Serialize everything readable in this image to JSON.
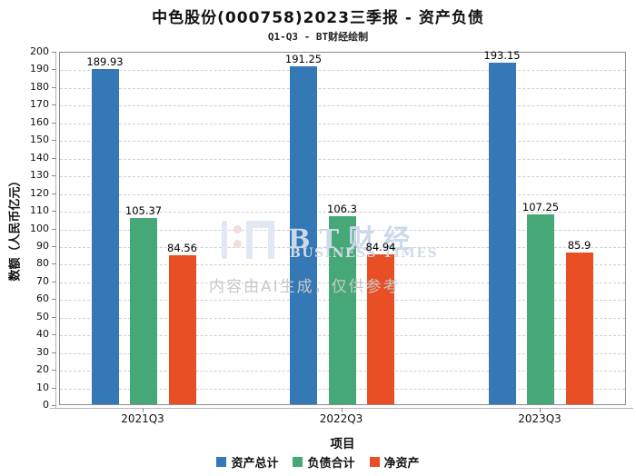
{
  "watermark": {
    "logo_text": "BT财经",
    "logo_subtext": "BUSINESS TIMES",
    "disclaimer": "内容由AI生成，仅供参考"
  },
  "chart_data": {
    "type": "bar",
    "title": "中色股份(000758)2023三季报 - 资产负债",
    "subtitle": "Q1-Q3 - BT财经绘制",
    "xlabel": "项目",
    "ylabel": "数额（人民币亿元）",
    "categories": [
      "2021Q3",
      "2022Q3",
      "2023Q3"
    ],
    "series": [
      {
        "name": "资产总计",
        "color": "#3478b6",
        "values": [
          189.93,
          191.25,
          193.15
        ]
      },
      {
        "name": "负债合计",
        "color": "#47a877",
        "values": [
          105.37,
          106.3,
          107.25
        ]
      },
      {
        "name": "净资产",
        "color": "#e84f25",
        "values": [
          84.56,
          84.94,
          85.9
        ]
      }
    ],
    "ylim": [
      0,
      200
    ],
    "ytick_step": 10,
    "grid": "horizontal-dashed",
    "legend_position": "bottom"
  }
}
